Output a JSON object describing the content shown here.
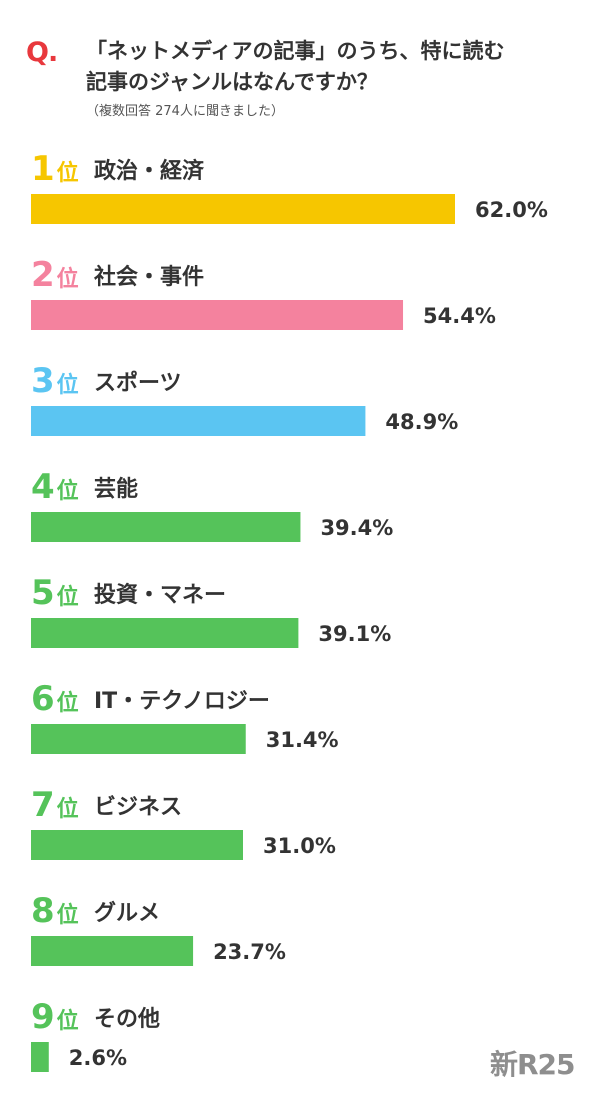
{
  "question": {
    "mark": "Q.",
    "line1": "「ネットメディアの記事」のうち、特に読む",
    "line2": "記事のジャンルはなんですか？",
    "note": "（複数回答 274人に聞きました）"
  },
  "logo": "新R25",
  "chart_data": {
    "type": "bar",
    "orientation": "horizontal",
    "rank_suffix": "位",
    "value_suffix": "%",
    "ranks": [
      "1",
      "2",
      "3",
      "4",
      "5",
      "6",
      "7",
      "8",
      "9"
    ],
    "categories": [
      "政治・経済",
      "社会・事件",
      "スポーツ",
      "芸能",
      "投資・マネー",
      "IT・テクノロジー",
      "ビジネス",
      "グルメ",
      "その他"
    ],
    "values": [
      62.0,
      54.4,
      48.9,
      39.4,
      39.1,
      31.4,
      31.0,
      23.7,
      2.6
    ],
    "value_labels": [
      "62.0",
      "54.4",
      "48.9",
      "39.4",
      "39.1",
      "31.4",
      "31.0",
      "23.7",
      "2.6"
    ],
    "colors": [
      "#f6c600",
      "#f4829e",
      "#5bc5f2",
      "#55c35a",
      "#55c35a",
      "#55c35a",
      "#55c35a",
      "#55c35a",
      "#55c35a"
    ]
  }
}
